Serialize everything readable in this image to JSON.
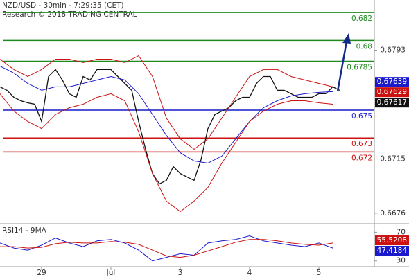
{
  "chart_data": [
    {
      "type": "line",
      "title": "NZD/USD - 30min - 7:29:35 (CET)",
      "subtitle": "Research © 2018 TRADING CENTRAL",
      "xlim": [
        -0.6,
        4.8
      ],
      "ylim": [
        0.6669,
        0.6829
      ],
      "yticks": [
        0.6793,
        0.6715,
        0.6676
      ],
      "levels": [
        {
          "value": 0.682,
          "color": "#1f8a1f"
        },
        {
          "value": 0.68,
          "color": "#1f8a1f"
        },
        {
          "value": 0.6785,
          "color": "#1f8a1f"
        },
        {
          "value": 0.675,
          "color": "#1a1acc"
        },
        {
          "value": 0.673,
          "color": "#cc1111"
        },
        {
          "value": 0.672,
          "color": "#cc1111"
        }
      ],
      "last_values": [
        {
          "value": 0.67639,
          "color": "#1a1acc"
        },
        {
          "value": 0.67629,
          "color": "#cc1111"
        },
        {
          "value": 0.67617,
          "color": "#111111"
        }
      ],
      "series": [
        {
          "color": "#111111",
          "x": [
            -0.6,
            -0.5,
            -0.4,
            -0.3,
            -0.2,
            -0.1,
            0,
            0.1,
            0.2,
            0.3,
            0.4,
            0.5,
            0.6,
            0.7,
            0.8,
            0.9,
            1,
            1.1,
            1.2,
            1.3,
            1.4,
            1.5,
            1.6,
            1.7,
            1.8,
            1.9,
            2,
            2.1,
            2.2,
            2.3,
            2.4,
            2.5,
            2.6,
            2.7,
            2.8,
            2.9,
            3,
            3.1,
            3.2,
            3.3,
            3.4,
            3.5,
            3.6,
            3.7,
            3.8,
            3.9,
            4,
            4.1,
            4.2,
            4.3
          ],
          "values": [
            0.67667,
            0.67642,
            0.67592,
            0.67567,
            0.67552,
            0.67542,
            0.67418,
            0.67741,
            0.67791,
            0.67716,
            0.67617,
            0.67592,
            0.67741,
            0.67716,
            0.67791,
            0.67791,
            0.67791,
            0.67741,
            0.67691,
            0.67642,
            0.67418,
            0.67219,
            0.67045,
            0.66971,
            0.66996,
            0.67095,
            0.67045,
            0.6702,
            0.66996,
            0.67145,
            0.67368,
            0.67468,
            0.67493,
            0.67517,
            0.67567,
            0.67592,
            0.67592,
            0.67691,
            0.67741,
            0.67741,
            0.67642,
            0.67642,
            0.67617,
            0.67592,
            0.67592,
            0.67592,
            0.67617,
            0.67617,
            0.67667,
            0.67642
          ]
        },
        {
          "color": "#1a1acc",
          "x": [
            -0.6,
            -0.4,
            -0.2,
            0,
            0.2,
            0.4,
            0.6,
            0.8,
            1,
            1.2,
            1.4,
            1.6,
            1.8,
            2,
            2.2,
            2.4,
            2.6,
            2.8,
            3,
            3.2,
            3.4,
            3.6,
            3.8,
            4,
            4.2
          ],
          "values": [
            0.67816,
            0.67766,
            0.67691,
            0.67642,
            0.67667,
            0.67667,
            0.67691,
            0.67716,
            0.67741,
            0.67716,
            0.67617,
            0.67468,
            0.67319,
            0.67194,
            0.67135,
            0.6712,
            0.6717,
            0.67294,
            0.67418,
            0.67517,
            0.67567,
            0.67602,
            0.67617,
            0.67627,
            0.67632
          ]
        },
        {
          "color": "#cc1111",
          "x": [
            -0.6,
            -0.4,
            -0.2,
            0,
            0.2,
            0.4,
            0.6,
            0.8,
            1,
            1.2,
            1.4,
            1.6,
            1.8,
            2,
            2.2,
            2.4,
            2.6,
            2.8,
            3,
            3.2,
            3.4,
            3.6,
            3.8,
            4,
            4.2
          ],
          "values": [
            0.67865,
            0.67791,
            0.67741,
            0.67791,
            0.67865,
            0.67865,
            0.67841,
            0.67865,
            0.67865,
            0.67841,
            0.6789,
            0.67741,
            0.67443,
            0.67294,
            0.67219,
            0.67294,
            0.67443,
            0.67592,
            0.67741,
            0.67791,
            0.67791,
            0.67741,
            0.67716,
            0.67691,
            0.67667
          ]
        },
        {
          "color": "#cc1111",
          "x": [
            -0.6,
            -0.4,
            -0.2,
            0,
            0.2,
            0.4,
            0.6,
            0.8,
            1,
            1.2,
            1.4,
            1.6,
            1.8,
            2,
            2.2,
            2.4,
            2.6,
            2.8,
            3,
            3.2,
            3.4,
            3.6,
            3.8,
            4,
            4.2
          ],
          "values": [
            0.67617,
            0.67493,
            0.67418,
            0.67368,
            0.67468,
            0.67517,
            0.67542,
            0.67592,
            0.67617,
            0.67567,
            0.67344,
            0.67045,
            0.66847,
            0.66772,
            0.66847,
            0.66946,
            0.6712,
            0.67269,
            0.67418,
            0.67493,
            0.67542,
            0.67567,
            0.67567,
            0.67552,
            0.67542
          ]
        }
      ]
    },
    {
      "type": "line",
      "title": "RSI14 - 9MA",
      "xlim": [
        -0.6,
        4.8
      ],
      "ylim": [
        22,
        81
      ],
      "yticks": [
        70,
        30
      ],
      "xticks": [
        {
          "value": 0,
          "label": "29"
        },
        {
          "value": 1,
          "label": "Jul"
        },
        {
          "value": 2,
          "label": "3"
        },
        {
          "value": 3,
          "label": "4"
        },
        {
          "value": 4,
          "label": "5"
        }
      ],
      "last_values": [
        {
          "value": 55.5208,
          "color": "#cc1111"
        },
        {
          "value": 47.4184,
          "color": "#1a1acc"
        }
      ],
      "series": [
        {
          "color": "#1a1acc",
          "x": [
            -0.6,
            -0.4,
            -0.2,
            0,
            0.2,
            0.4,
            0.6,
            0.8,
            1,
            1.2,
            1.4,
            1.6,
            1.8,
            2,
            2.2,
            2.4,
            2.6,
            2.8,
            3,
            3.2,
            3.4,
            3.6,
            3.8,
            4,
            4.2
          ],
          "values": [
            55,
            48,
            45,
            52,
            62,
            55,
            50,
            58,
            60,
            55,
            45,
            30,
            35,
            40,
            38,
            55,
            58,
            60,
            65,
            58,
            55,
            52,
            50,
            55,
            48
          ]
        },
        {
          "color": "#cc1111",
          "x": [
            -0.6,
            -0.4,
            -0.2,
            0,
            0.2,
            0.4,
            0.6,
            0.8,
            1,
            1.2,
            1.4,
            1.6,
            1.8,
            2,
            2.2,
            2.4,
            2.6,
            2.8,
            3,
            3.2,
            3.4,
            3.6,
            3.8,
            4,
            4.2
          ],
          "values": [
            50,
            50,
            48,
            49,
            54,
            56,
            55,
            55,
            57,
            56,
            53,
            45,
            37,
            35,
            38,
            44,
            50,
            56,
            60,
            60,
            58,
            55,
            53,
            52,
            55
          ]
        }
      ]
    }
  ]
}
